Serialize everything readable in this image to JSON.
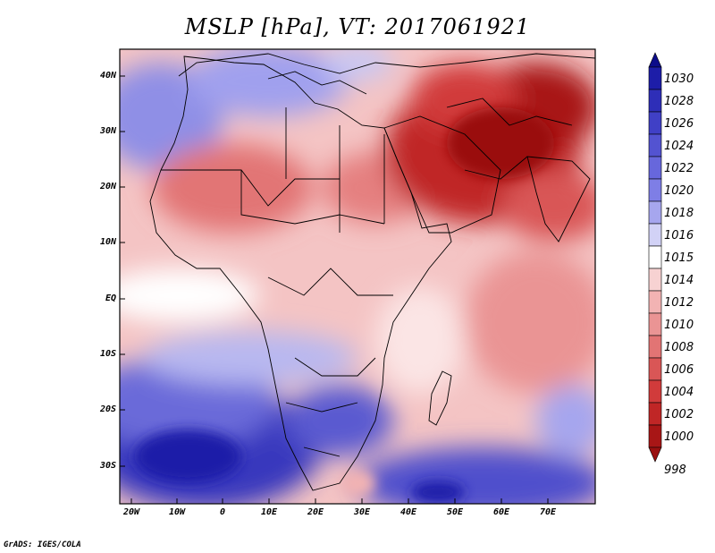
{
  "title": "MSLP [hPa], VT: 2017061921",
  "credit": "GrADS: IGES/COLA",
  "map": {
    "lat_ticks": [
      "40N",
      "30N",
      "20N",
      "10N",
      "EQ",
      "10S",
      "20S",
      "30S"
    ],
    "lon_ticks": [
      "20W",
      "10W",
      "0",
      "10E",
      "20E",
      "30E",
      "40E",
      "50E",
      "60E",
      "70E"
    ]
  },
  "colorbar": {
    "labels": [
      "1030",
      "1028",
      "1026",
      "1024",
      "1022",
      "1020",
      "1018",
      "1016",
      "1015",
      "1014",
      "1012",
      "1010",
      "1008",
      "1006",
      "1004",
      "1002",
      "1000",
      "998"
    ],
    "colors": [
      "#0c0c8a",
      "#1d1da8",
      "#2e2eb8",
      "#4040c6",
      "#5353d1",
      "#6767dc",
      "#7e7ee6",
      "#a6a6ee",
      "#d2d2f6",
      "#ffffff",
      "#f7d2d2",
      "#f2b3b3",
      "#ea9494",
      "#e27474",
      "#d95656",
      "#d13b3b",
      "#c02626",
      "#a81616",
      "#9a1010"
    ]
  }
}
